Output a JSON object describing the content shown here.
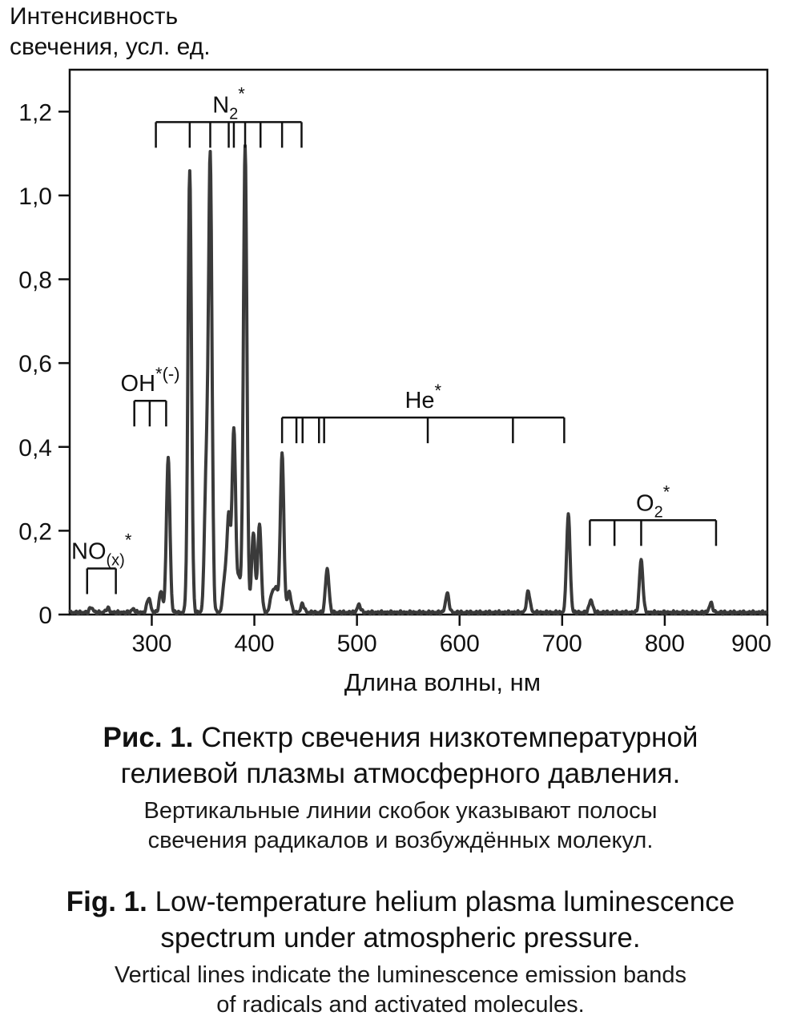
{
  "chart_data": {
    "type": "line",
    "ylabel_lines": [
      "Интенсивность",
      "свечения, усл. ед."
    ],
    "xlabel": "Длина волны, нм",
    "xlim": [
      220,
      900
    ],
    "ylim": [
      0,
      1.3
    ],
    "x_ticks": [
      300,
      400,
      500,
      600,
      700,
      800,
      900
    ],
    "x_tick_labels": [
      "300",
      "400",
      "500",
      "600",
      "700",
      "800",
      "900"
    ],
    "y_ticks": [
      0,
      0.2,
      0.4,
      0.6,
      0.8,
      1.0,
      1.2
    ],
    "y_tick_labels": [
      "0",
      "0,2",
      "0,4",
      "0,6",
      "0,8",
      "1,0",
      "1,2"
    ],
    "grid": false,
    "line_color": "#3a3a3a",
    "baseline": 0.005,
    "peaks": [
      {
        "x": 241,
        "y": 0.012
      },
      {
        "x": 257,
        "y": 0.01
      },
      {
        "x": 282,
        "y": 0.008
      },
      {
        "x": 297,
        "y": 0.035
      },
      {
        "x": 309,
        "y": 0.05
      },
      {
        "x": 316,
        "y": 0.37
      },
      {
        "x": 337,
        "y": 1.055
      },
      {
        "x": 353,
        "y": 0.32
      },
      {
        "x": 357,
        "y": 1.08
      },
      {
        "x": 371,
        "y": 0.08
      },
      {
        "x": 375,
        "y": 0.23
      },
      {
        "x": 380,
        "y": 0.44
      },
      {
        "x": 385,
        "y": 0.08
      },
      {
        "x": 391,
        "y": 1.11
      },
      {
        "x": 399,
        "y": 0.19
      },
      {
        "x": 405,
        "y": 0.21
      },
      {
        "x": 417,
        "y": 0.045
      },
      {
        "x": 421,
        "y": 0.06
      },
      {
        "x": 427,
        "y": 0.38
      },
      {
        "x": 434,
        "y": 0.05
      },
      {
        "x": 447,
        "y": 0.02
      },
      {
        "x": 471,
        "y": 0.105
      },
      {
        "x": 502,
        "y": 0.018
      },
      {
        "x": 588,
        "y": 0.045
      },
      {
        "x": 667,
        "y": 0.05
      },
      {
        "x": 706,
        "y": 0.235
      },
      {
        "x": 728,
        "y": 0.03
      },
      {
        "x": 777,
        "y": 0.125
      },
      {
        "x": 845,
        "y": 0.022
      }
    ],
    "annotations": [
      {
        "label": "NO",
        "sup": "*",
        "sub": "(x)",
        "bracket_x": [
          237,
          265
        ],
        "bracket_y": 0.11,
        "ticks": [
          237,
          265
        ],
        "direction": "down"
      },
      {
        "label": "OH",
        "sup": "*(-)",
        "sub": "",
        "bracket_x": [
          283,
          314
        ],
        "bracket_y": 0.51,
        "ticks": [
          283,
          298,
          314
        ],
        "direction": "down"
      },
      {
        "label": "N",
        "sup": "*",
        "sub": "2",
        "bracket_x": [
          304,
          446
        ],
        "bracket_y": 1.175,
        "ticks": [
          304,
          337,
          357,
          375,
          380,
          391,
          406,
          427,
          446
        ],
        "direction": "down"
      },
      {
        "label": "He",
        "sup": "*",
        "sub": "",
        "bracket_x": [
          427,
          702
        ],
        "bracket_y": 0.47,
        "ticks": [
          427,
          441,
          447,
          463,
          468,
          569,
          652,
          702
        ],
        "direction": "down"
      },
      {
        "label": "O",
        "sup": "*",
        "sub": "2",
        "bracket_x": [
          727,
          850
        ],
        "bracket_y": 0.225,
        "ticks": [
          727,
          751,
          777,
          850
        ],
        "direction": "down"
      }
    ]
  },
  "captions": {
    "ru_title_bold": "Рис. 1.",
    "ru_title": " Спектр свечения низкотемпературной",
    "ru_title_line2": "гелиевой плазмы атмосферного давления.",
    "ru_note_line1": "Вертикальные линии скобок указывают полосы",
    "ru_note_line2": "свечения радикалов и возбуждённых молекул.",
    "en_title_bold": "Fig. 1.",
    "en_title": " Low-temperature helium plasma luminescence",
    "en_title_line2": "spectrum under atmospheric pressure.",
    "en_note_line1": "Vertical lines indicate the luminescence emission bands",
    "en_note_line2": "of radicals and activated molecules."
  }
}
